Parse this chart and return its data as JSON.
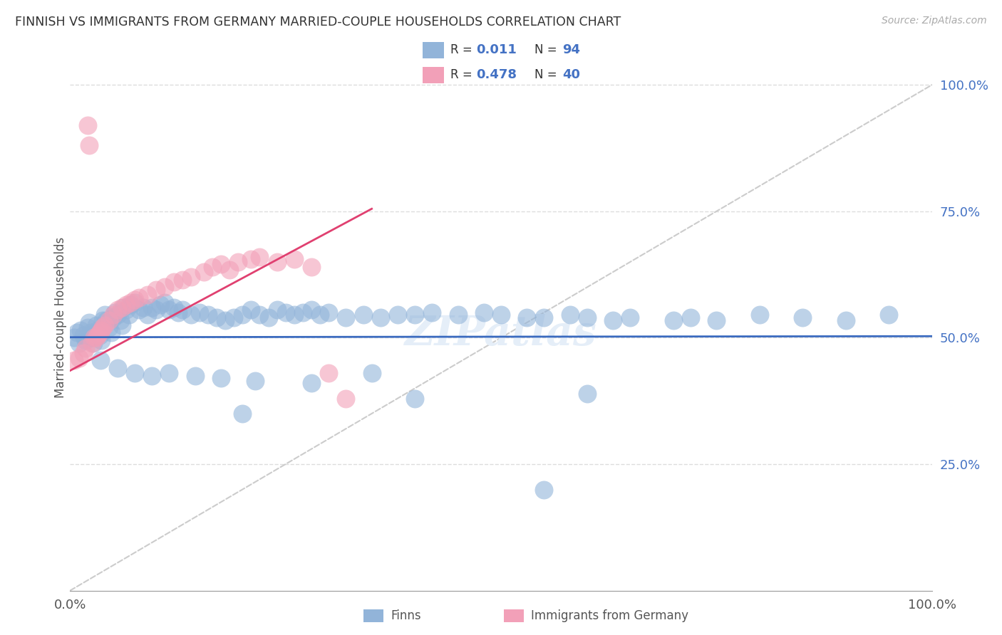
{
  "title": "FINNISH VS IMMIGRANTS FROM GERMANY MARRIED-COUPLE HOUSEHOLDS CORRELATION CHART",
  "source": "Source: ZipAtlas.com",
  "ylabel": "Married-couple Households",
  "legend_label1": "Finns",
  "legend_label2": "Immigrants from Germany",
  "R1": "0.011",
  "N1": "94",
  "R2": "0.478",
  "N2": "40",
  "color_finns": "#92b4d9",
  "color_immigrants": "#f2a0b8",
  "trendline_finns": "#3a6abf",
  "trendline_immigrants": "#e04070",
  "trendline_dashed_color": "#cccccc",
  "grid_color": "#dddddd",
  "xlim": [
    0.0,
    1.0
  ],
  "ylim": [
    0.0,
    1.08
  ],
  "yticks": [
    0.25,
    0.5,
    0.75,
    1.0
  ],
  "yticklabels": [
    "25.0%",
    "50.0%",
    "75.0%",
    "100.0%"
  ],
  "xtick_positions": [
    0.0,
    1.0
  ],
  "xticklabels": [
    "0.0%",
    "100.0%"
  ],
  "finns_x": [
    0.005,
    0.008,
    0.01,
    0.012,
    0.015,
    0.018,
    0.02,
    0.022,
    0.024,
    0.025,
    0.027,
    0.03,
    0.032,
    0.034,
    0.036,
    0.038,
    0.04,
    0.042,
    0.045,
    0.048,
    0.05,
    0.052,
    0.055,
    0.058,
    0.06,
    0.062,
    0.065,
    0.068,
    0.07,
    0.075,
    0.08,
    0.085,
    0.09,
    0.095,
    0.1,
    0.105,
    0.11,
    0.115,
    0.12,
    0.125,
    0.13,
    0.14,
    0.15,
    0.16,
    0.17,
    0.18,
    0.19,
    0.2,
    0.21,
    0.22,
    0.23,
    0.24,
    0.25,
    0.26,
    0.27,
    0.28,
    0.29,
    0.3,
    0.32,
    0.34,
    0.36,
    0.38,
    0.4,
    0.42,
    0.45,
    0.48,
    0.5,
    0.53,
    0.55,
    0.58,
    0.6,
    0.63,
    0.65,
    0.7,
    0.72,
    0.75,
    0.8,
    0.85,
    0.9,
    0.95,
    0.035,
    0.055,
    0.075,
    0.095,
    0.115,
    0.145,
    0.175,
    0.215,
    0.28,
    0.35,
    0.2,
    0.4,
    0.6,
    0.55
  ],
  "finns_y": [
    0.5,
    0.51,
    0.49,
    0.515,
    0.505,
    0.495,
    0.52,
    0.53,
    0.51,
    0.5,
    0.49,
    0.525,
    0.515,
    0.505,
    0.495,
    0.535,
    0.545,
    0.535,
    0.52,
    0.51,
    0.54,
    0.55,
    0.545,
    0.535,
    0.525,
    0.56,
    0.555,
    0.545,
    0.565,
    0.57,
    0.555,
    0.56,
    0.545,
    0.56,
    0.555,
    0.565,
    0.57,
    0.555,
    0.56,
    0.55,
    0.555,
    0.545,
    0.55,
    0.545,
    0.54,
    0.535,
    0.54,
    0.545,
    0.555,
    0.545,
    0.54,
    0.555,
    0.55,
    0.545,
    0.55,
    0.555,
    0.545,
    0.55,
    0.54,
    0.545,
    0.54,
    0.545,
    0.545,
    0.55,
    0.545,
    0.55,
    0.545,
    0.54,
    0.54,
    0.545,
    0.54,
    0.535,
    0.54,
    0.535,
    0.54,
    0.535,
    0.545,
    0.54,
    0.535,
    0.545,
    0.455,
    0.44,
    0.43,
    0.425,
    0.43,
    0.425,
    0.42,
    0.415,
    0.41,
    0.43,
    0.35,
    0.38,
    0.39,
    0.2
  ],
  "immigrants_x": [
    0.005,
    0.01,
    0.015,
    0.018,
    0.02,
    0.022,
    0.025,
    0.028,
    0.03,
    0.032,
    0.034,
    0.036,
    0.038,
    0.04,
    0.045,
    0.05,
    0.055,
    0.06,
    0.065,
    0.07,
    0.075,
    0.08,
    0.09,
    0.1,
    0.11,
    0.12,
    0.13,
    0.14,
    0.155,
    0.165,
    0.175,
    0.185,
    0.195,
    0.21,
    0.22,
    0.24,
    0.26,
    0.28,
    0.3,
    0.32
  ],
  "immigrants_y": [
    0.455,
    0.46,
    0.47,
    0.48,
    0.92,
    0.88,
    0.49,
    0.5,
    0.5,
    0.505,
    0.51,
    0.515,
    0.52,
    0.525,
    0.535,
    0.545,
    0.555,
    0.56,
    0.565,
    0.57,
    0.575,
    0.58,
    0.585,
    0.595,
    0.6,
    0.61,
    0.615,
    0.62,
    0.63,
    0.64,
    0.645,
    0.635,
    0.65,
    0.655,
    0.66,
    0.65,
    0.655,
    0.64,
    0.43,
    0.38
  ]
}
